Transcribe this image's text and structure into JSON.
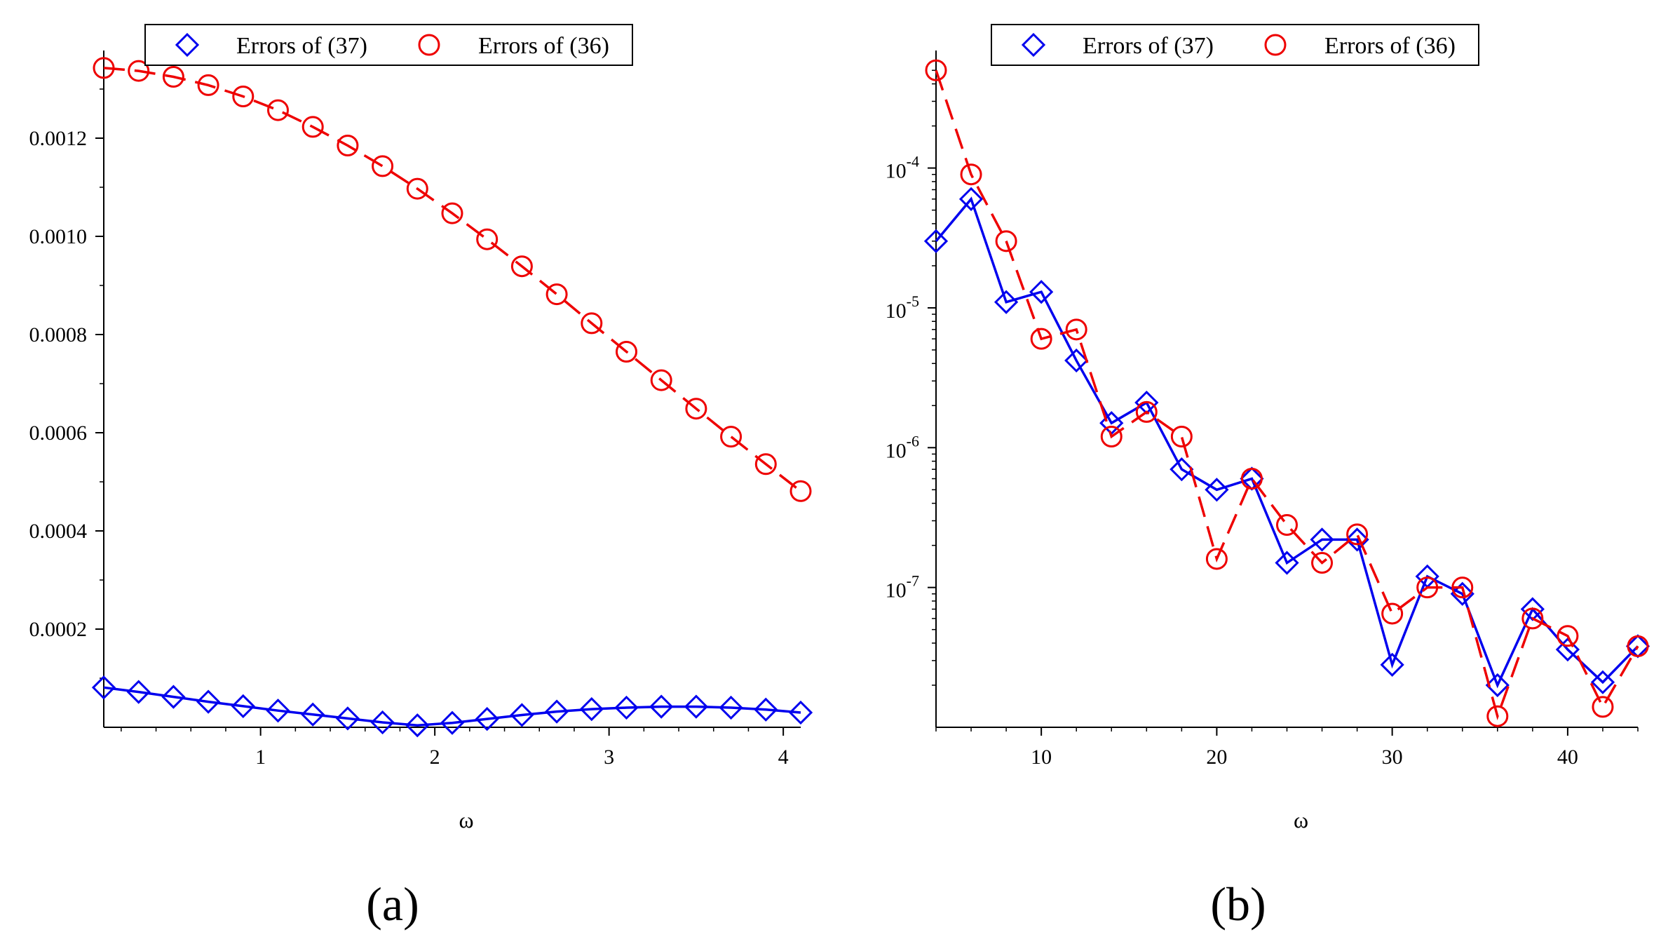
{
  "chart_data": [
    {
      "type": "line",
      "panel_label": "(a)",
      "xlabel": "ω",
      "ylabel": "",
      "yscale": "linear",
      "xlim": [
        0.1,
        4.1
      ],
      "ylim": [
        0,
        0.00135
      ],
      "xticks": [
        1,
        2,
        3,
        4
      ],
      "xtick_labels": [
        "1",
        "2",
        "3",
        "4"
      ],
      "yticks": [
        0.0002,
        0.0004,
        0.0006,
        0.0008,
        0.001,
        0.0012
      ],
      "ytick_labels": [
        "0.0002",
        "0.0004",
        "0.0006",
        "0.0008",
        "0.0010",
        "0.0012"
      ],
      "legend": [
        "Errors of (37)",
        "Errors of (36)"
      ],
      "legend_position": "top",
      "series": [
        {
          "name": "Errors of (37)",
          "color": "#0000ee",
          "marker": "diamond",
          "linestyle": "solid",
          "x": [
            0.1,
            0.3,
            0.5,
            0.7,
            0.9,
            1.1,
            1.3,
            1.5,
            1.7,
            1.9,
            2.1,
            2.3,
            2.5,
            2.7,
            2.9,
            3.1,
            3.3,
            3.5,
            3.7,
            3.9,
            4.1
          ],
          "y": [
            8.1e-05,
            7.2e-05,
            6.2e-05,
            5.2e-05,
            4.3e-05,
            3.4e-05,
            2.6e-05,
            1.8e-05,
            1e-05,
            4e-06,
            9e-06,
            1.7e-05,
            2.5e-05,
            3.2e-05,
            3.7e-05,
            4e-05,
            4.2e-05,
            4.2e-05,
            4e-05,
            3.6e-05,
            3e-05
          ]
        },
        {
          "name": "Errors of (36)",
          "color": "#ee0000",
          "marker": "circle",
          "linestyle": "dashed",
          "x": [
            0.1,
            0.3,
            0.5,
            0.7,
            0.9,
            1.1,
            1.3,
            1.5,
            1.7,
            1.9,
            2.1,
            2.3,
            2.5,
            2.7,
            2.9,
            3.1,
            3.3,
            3.5,
            3.7,
            3.9,
            4.1
          ],
          "y": [
            0.001343,
            0.001337,
            0.001325,
            0.001308,
            0.001285,
            0.001257,
            0.001223,
            0.001185,
            0.001143,
            0.001097,
            0.001047,
            0.000994,
            0.000939,
            0.000882,
            0.000823,
            0.000765,
            0.000707,
            0.000649,
            0.000592,
            0.000536,
            0.000481
          ]
        }
      ]
    },
    {
      "type": "line",
      "panel_label": "(b)",
      "xlabel": "ω",
      "ylabel": "",
      "yscale": "log",
      "xlim": [
        4,
        44
      ],
      "ylim": [
        1e-08,
        0.00055
      ],
      "xticks": [
        10,
        20,
        30,
        40
      ],
      "xtick_labels": [
        "10",
        "20",
        "30",
        "40"
      ],
      "yticks": [
        1e-07,
        1e-06,
        1e-05,
        0.0001
      ],
      "ytick_labels": [
        {
          "base": "10",
          "exp": "-7"
        },
        {
          "base": "10",
          "exp": "-6"
        },
        {
          "base": "10",
          "exp": "-5"
        },
        {
          "base": "10",
          "exp": "-4"
        }
      ],
      "legend": [
        "Errors of (37)",
        "Errors of (36)"
      ],
      "legend_position": "top",
      "series": [
        {
          "name": "Errors of (37)",
          "color": "#0000ee",
          "marker": "diamond",
          "linestyle": "solid",
          "x": [
            4,
            6,
            8,
            10,
            12,
            14,
            16,
            18,
            20,
            22,
            24,
            26,
            28,
            30,
            32,
            34,
            36,
            38,
            40,
            42,
            44
          ],
          "y": [
            3e-05,
            6e-05,
            1.1e-05,
            1.3e-05,
            4.2e-06,
            1.5e-06,
            2.1e-06,
            7e-07,
            5e-07,
            6e-07,
            1.5e-07,
            2.2e-07,
            2.2e-07,
            2.8e-08,
            1.2e-07,
            9e-08,
            2e-08,
            7e-08,
            3.6e-08,
            2.1e-08,
            3.8e-08
          ]
        },
        {
          "name": "Errors of (36)",
          "color": "#ee0000",
          "marker": "circle",
          "linestyle": "dashed",
          "x": [
            4,
            6,
            8,
            10,
            12,
            14,
            16,
            18,
            20,
            22,
            24,
            26,
            28,
            30,
            32,
            34,
            36,
            38,
            40,
            42,
            44
          ],
          "y": [
            0.0005,
            9e-05,
            3e-05,
            6e-06,
            7e-06,
            1.2e-06,
            1.8e-06,
            1.2e-06,
            1.6e-07,
            6e-07,
            2.8e-07,
            1.5e-07,
            2.4e-07,
            6.5e-08,
            1e-07,
            1e-07,
            1.2e-08,
            6e-08,
            4.5e-08,
            1.4e-08,
            3.8e-08
          ]
        }
      ]
    }
  ]
}
